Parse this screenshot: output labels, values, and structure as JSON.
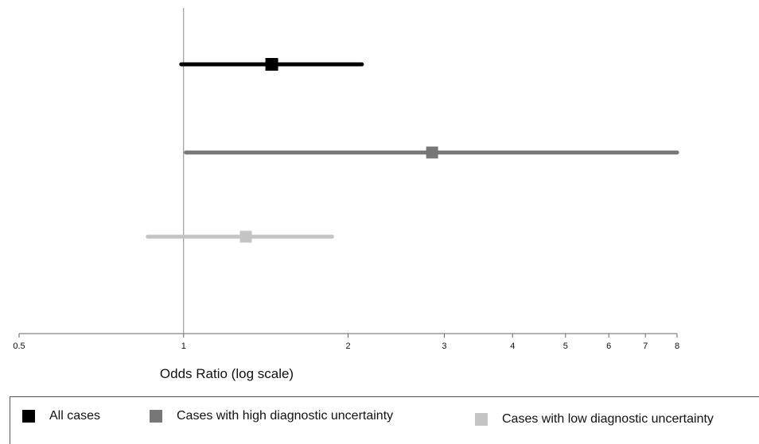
{
  "chart_data": {
    "type": "forest",
    "title": "",
    "xlabel": "Odds Ratio (log scale)",
    "ylabel": "",
    "x_scale": "log",
    "xlim": [
      0.5,
      8
    ],
    "x_ticks": [
      0.5,
      1,
      2,
      3,
      4,
      5,
      6,
      7,
      8
    ],
    "x_tick_labels": [
      "0.5",
      "1",
      "2",
      "3",
      "4",
      "5",
      "6",
      "7",
      "8"
    ],
    "reference_line": 1,
    "legend_placement": "bottom",
    "series": [
      {
        "name": "All cases",
        "estimate": 1.45,
        "ci_lower": 0.99,
        "ci_upper": 2.12,
        "color": "#000000"
      },
      {
        "name": "Cases with high diagnostic uncertainty",
        "estimate": 2.85,
        "ci_lower": 1.01,
        "ci_upper": 8.0,
        "color": "#777777"
      },
      {
        "name": "Cases with low diagnostic uncertainty",
        "estimate": 1.3,
        "ci_lower": 0.86,
        "ci_upper": 1.87,
        "color": "#c4c4c4"
      }
    ]
  }
}
